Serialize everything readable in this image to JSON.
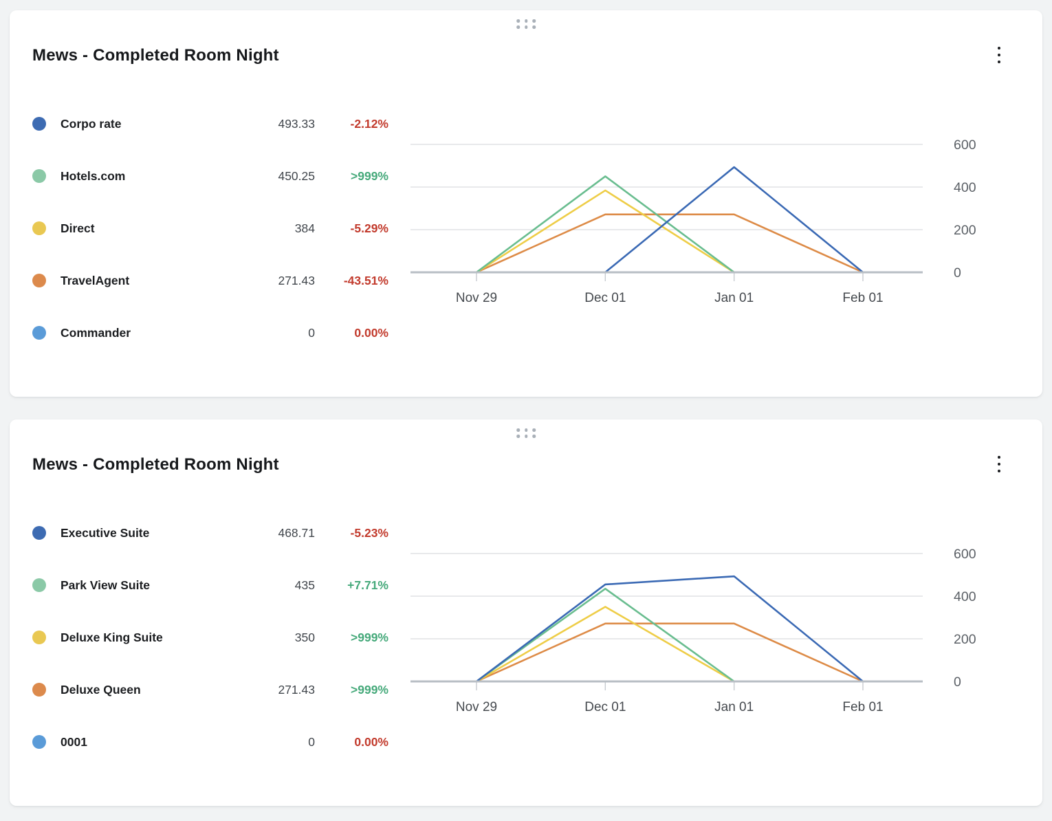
{
  "page": {
    "background": "#f1f3f4"
  },
  "cards": [
    {
      "title": "Mews - Completed Room Night",
      "drag_icon": "drag-handle-dots",
      "menu_icon": "kebab-menu",
      "legend": [
        {
          "label": "Corpo rate",
          "value": "493.33",
          "percent": "-2.12%",
          "dot_color": "#3d6bb2",
          "percent_color": "#c23a2c"
        },
        {
          "label": "Hotels.com",
          "value": "450.25",
          "percent": ">999%",
          "dot_color": "#8bc9a7",
          "percent_color": "#45a97a"
        },
        {
          "label": "Direct",
          "value": "384",
          "percent": "-5.29%",
          "dot_color": "#e9c852",
          "percent_color": "#c23a2c"
        },
        {
          "label": "TravelAgent",
          "value": "271.43",
          "percent": "-43.51%",
          "dot_color": "#dc8a4c",
          "percent_color": "#c23a2c"
        },
        {
          "label": "Commander",
          "value": "0",
          "percent": "0.00%",
          "dot_color": "#5a9bd8",
          "percent_color": "#c23a2c"
        }
      ]
    },
    {
      "title": "Mews - Completed Room Night",
      "drag_icon": "drag-handle-dots",
      "menu_icon": "kebab-menu",
      "legend": [
        {
          "label": "Executive Suite",
          "value": "468.71",
          "percent": "-5.23%",
          "dot_color": "#3d6bb2",
          "percent_color": "#c23a2c"
        },
        {
          "label": "Park View Suite",
          "value": "435",
          "percent": "+7.71%",
          "dot_color": "#8bc9a7",
          "percent_color": "#45a97a"
        },
        {
          "label": "Deluxe King Suite",
          "value": "350",
          "percent": ">999%",
          "dot_color": "#e9c852",
          "percent_color": "#45a97a"
        },
        {
          "label": "Deluxe Queen",
          "value": "271.43",
          "percent": ">999%",
          "dot_color": "#dc8a4c",
          "percent_color": "#45a97a"
        },
        {
          "label": "0001",
          "value": "0",
          "percent": "0.00%",
          "dot_color": "#5a9bd8",
          "percent_color": "#c23a2c"
        }
      ]
    }
  ],
  "chart_data": [
    {
      "type": "line",
      "title": "Mews - Completed Room Night",
      "x": [
        "Nov 29",
        "Dec 01",
        "Jan 01",
        "Feb 01"
      ],
      "series": [
        {
          "name": "Corpo rate",
          "color": "#3a69b4",
          "values": [
            null,
            0,
            493.33,
            0
          ]
        },
        {
          "name": "Hotels.com",
          "color": "#69bd8f",
          "values": [
            0,
            450.25,
            0,
            null
          ]
        },
        {
          "name": "Direct",
          "color": "#eecd47",
          "values": [
            0,
            384,
            0,
            null
          ]
        },
        {
          "name": "TravelAgent",
          "color": "#dd8b47",
          "values": [
            0,
            271.43,
            271.43,
            0
          ]
        },
        {
          "name": "Commander",
          "color": "#5a9bd8",
          "values": [
            0,
            0,
            0,
            0
          ]
        }
      ],
      "ylim": [
        0,
        600
      ],
      "yticks": [
        0,
        200,
        400,
        600
      ],
      "yaxis_side": "right",
      "grid": true,
      "legend_position": "left"
    },
    {
      "type": "line",
      "title": "Mews - Completed Room Night",
      "x": [
        "Nov 29",
        "Dec 01",
        "Jan 01",
        "Feb 01"
      ],
      "series": [
        {
          "name": "Executive Suite",
          "color": "#3a69b4",
          "values": [
            0,
            455,
            493,
            0
          ]
        },
        {
          "name": "Park View Suite",
          "color": "#69bd8f",
          "values": [
            0,
            435,
            0,
            null
          ]
        },
        {
          "name": "Deluxe King Suite",
          "color": "#eecd47",
          "values": [
            0,
            350,
            0,
            null
          ]
        },
        {
          "name": "Deluxe Queen",
          "color": "#dd8b47",
          "values": [
            0,
            271.43,
            271.43,
            0
          ]
        },
        {
          "name": "0001",
          "color": "#5a9bd8",
          "values": [
            0,
            0,
            0,
            0
          ]
        }
      ],
      "ylim": [
        0,
        600
      ],
      "yticks": [
        0,
        200,
        400,
        600
      ],
      "yaxis_side": "right",
      "grid": true,
      "legend_position": "left"
    }
  ]
}
